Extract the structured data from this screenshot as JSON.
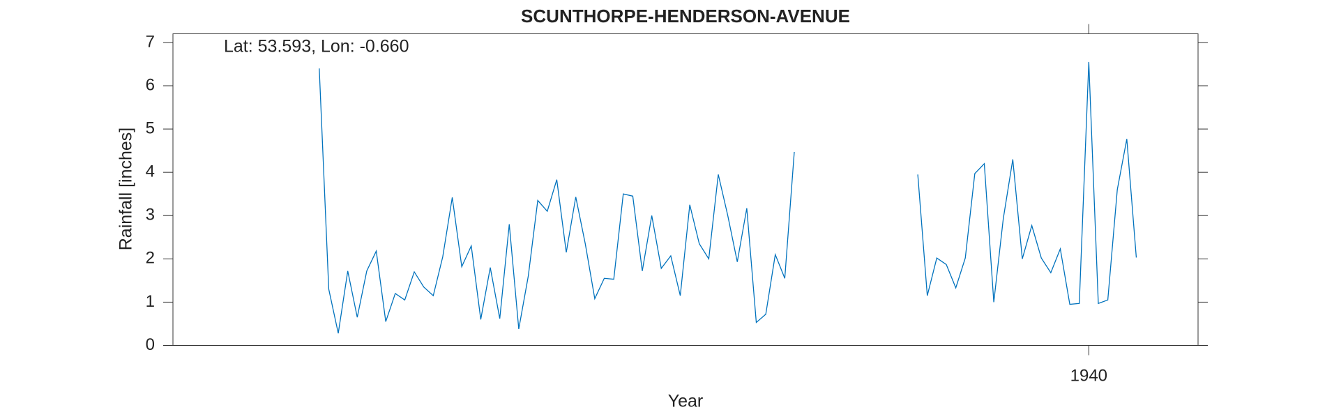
{
  "chart_data": {
    "type": "line",
    "title": "SCUNTHORPE-HENDERSON-AVENUE",
    "annotation": "Lat: 53.593, Lon: -0.660",
    "xlabel": "Year",
    "ylabel": "Rainfall [inches]",
    "x": [
      1859,
      1860,
      1861,
      1862,
      1863,
      1864,
      1865,
      1866,
      1867,
      1868,
      1869,
      1870,
      1871,
      1872,
      1873,
      1874,
      1875,
      1876,
      1877,
      1878,
      1879,
      1880,
      1881,
      1882,
      1883,
      1884,
      1885,
      1886,
      1887,
      1888,
      1889,
      1890,
      1891,
      1892,
      1893,
      1894,
      1895,
      1896,
      1897,
      1898,
      1899,
      1900,
      1901,
      1902,
      1903,
      1904,
      1905,
      1906,
      1907,
      1908,
      1909,
      1910,
      1911,
      1912,
      1913,
      1914,
      1915,
      1916,
      1917,
      1918,
      1919,
      1920,
      1921,
      1922,
      1923,
      1924,
      1925,
      1926,
      1927,
      1928,
      1929,
      1930,
      1931,
      1932,
      1933,
      1934,
      1935,
      1936,
      1937,
      1938,
      1939,
      1940,
      1941,
      1942,
      1943,
      1944,
      1945
    ],
    "series": [
      {
        "name": "Rainfall",
        "color": "#0072bd",
        "values": [
          6.4,
          1.3,
          0.28,
          1.72,
          0.65,
          1.72,
          2.18,
          0.55,
          1.2,
          1.05,
          1.7,
          1.35,
          1.15,
          2.05,
          3.42,
          1.82,
          2.3,
          0.6,
          1.8,
          0.62,
          2.8,
          0.38,
          1.6,
          3.35,
          3.1,
          3.83,
          2.15,
          3.43,
          2.35,
          1.08,
          1.55,
          1.53,
          3.5,
          3.45,
          1.72,
          3.0,
          1.78,
          2.07,
          1.15,
          3.25,
          2.35,
          2.0,
          3.95,
          3.0,
          1.93,
          3.17,
          0.53,
          0.72,
          2.1,
          1.55,
          4.47,
          null,
          null,
          null,
          null,
          null,
          null,
          null,
          null,
          null,
          null,
          null,
          null,
          3.95,
          1.15,
          2.02,
          1.87,
          1.33,
          2.02,
          3.97,
          4.2,
          1.0,
          2.93,
          4.3,
          2.0,
          2.77,
          2.02,
          1.68,
          2.23,
          0.95,
          0.97,
          6.55,
          0.97,
          1.05,
          3.6,
          4.77,
          2.03
        ]
      }
    ],
    "xlim": [
      1843.6,
      1951.5
    ],
    "xticks": [
      1940
    ],
    "ylim": [
      0,
      7.2
    ],
    "yticks": [
      0,
      1,
      2,
      3,
      4,
      5,
      6,
      7
    ]
  }
}
